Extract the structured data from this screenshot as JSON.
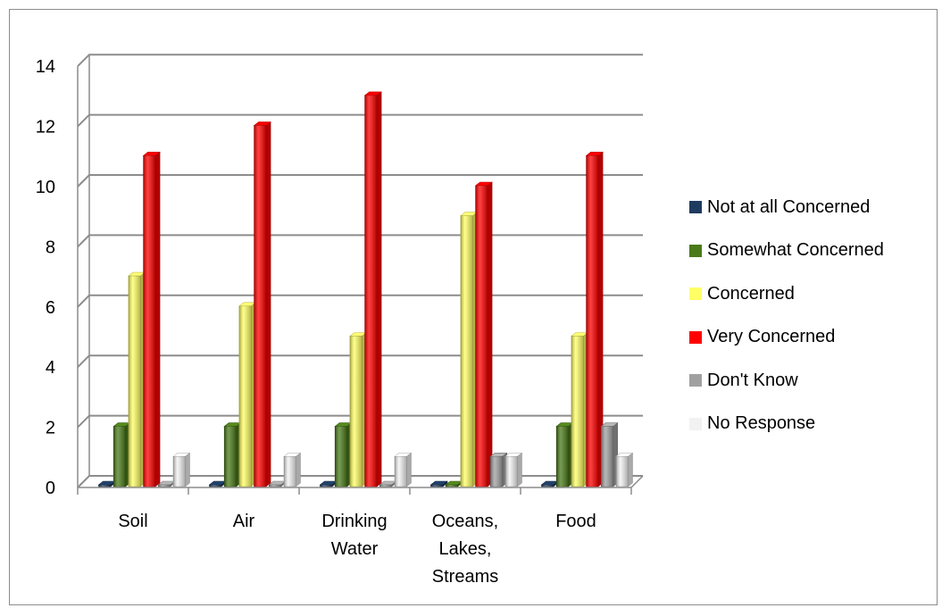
{
  "chart_data": {
    "type": "bar",
    "categories": [
      [
        "Soil"
      ],
      [
        "Air"
      ],
      [
        "Drinking",
        "Water"
      ],
      [
        "Oceans,",
        "Lakes,",
        "Streams"
      ],
      [
        "Food"
      ]
    ],
    "series": [
      {
        "name": "Not at all Concerned",
        "color": "#1f3b5f",
        "values": [
          0,
          0,
          0,
          0,
          0
        ]
      },
      {
        "name": "Somewhat Concerned",
        "color": "#4a7a19",
        "values": [
          2,
          2,
          2,
          0,
          2
        ]
      },
      {
        "name": "Concerned",
        "color": "#ffff66",
        "values": [
          7,
          6,
          5,
          9,
          5
        ]
      },
      {
        "name": "Very Concerned",
        "color": "#ff0000",
        "values": [
          11,
          12,
          13,
          10,
          11
        ]
      },
      {
        "name": "Don't Know",
        "color": "#a0a0a0",
        "values": [
          0,
          0,
          0,
          1,
          2
        ]
      },
      {
        "name": "No Response",
        "color": "#f2f2f2",
        "values": [
          1,
          1,
          1,
          1,
          1
        ]
      }
    ],
    "yticks": [
      0,
      2,
      4,
      6,
      8,
      10,
      12,
      14
    ],
    "ylim": [
      0,
      14
    ],
    "title": "",
    "xlabel": "",
    "ylabel": "",
    "grid": true,
    "legend_position": "right"
  }
}
